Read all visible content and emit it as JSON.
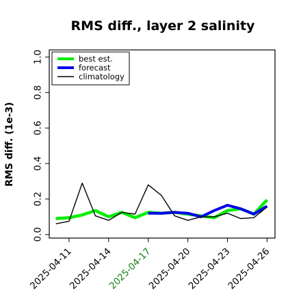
{
  "chart_data": {
    "type": "line",
    "title": "RMS diff., layer 2 salinity",
    "xlabel": "",
    "ylabel": "RMS diff. (1e-3)",
    "ylim": [
      -0.02,
      1.04
    ],
    "yticks": [
      "0.0",
      "0.2",
      "0.4",
      "0.6",
      "0.8",
      "1.0"
    ],
    "xlim": [
      -0.5,
      16.6
    ],
    "xticks": [
      {
        "label": "2025-04-11",
        "index": 1,
        "color": "#000000"
      },
      {
        "label": "2025-04-14",
        "index": 4,
        "color": "#000000"
      },
      {
        "label": "2025-04-17",
        "index": 7,
        "color": "#1a7f1a"
      },
      {
        "label": "2025-04-20",
        "index": 10,
        "color": "#000000"
      },
      {
        "label": "2025-04-23",
        "index": 13,
        "color": "#000000"
      },
      {
        "label": "2025-04-26",
        "index": 16,
        "color": "#000000"
      }
    ],
    "grid": false,
    "legend_position": "top-left",
    "x": [
      "2025-04-10",
      "2025-04-11",
      "2025-04-12",
      "2025-04-13",
      "2025-04-14",
      "2025-04-15",
      "2025-04-16",
      "2025-04-17",
      "2025-04-18",
      "2025-04-19",
      "2025-04-20",
      "2025-04-21",
      "2025-04-22",
      "2025-04-23",
      "2025-04-24",
      "2025-04-25",
      "2025-04-26"
    ],
    "series": [
      {
        "name": "best est.",
        "color": "#00ee00",
        "values": [
          0.09,
          0.095,
          0.11,
          0.135,
          0.1,
          0.125,
          0.095,
          0.125,
          0.12,
          0.125,
          0.115,
          0.105,
          0.095,
          0.135,
          0.145,
          0.115,
          0.195
        ]
      },
      {
        "name": "forecast",
        "color": "#0000ee",
        "values": [
          null,
          null,
          null,
          null,
          null,
          null,
          null,
          0.12,
          0.12,
          0.125,
          0.12,
          0.1,
          0.135,
          0.165,
          0.145,
          0.115,
          0.16
        ]
      },
      {
        "name": "climatology",
        "color": "#000000",
        "values": [
          0.06,
          0.075,
          0.29,
          0.105,
          0.08,
          0.125,
          0.115,
          0.28,
          0.22,
          0.105,
          0.08,
          0.1,
          0.1,
          0.12,
          0.09,
          0.095,
          0.155
        ]
      }
    ]
  }
}
